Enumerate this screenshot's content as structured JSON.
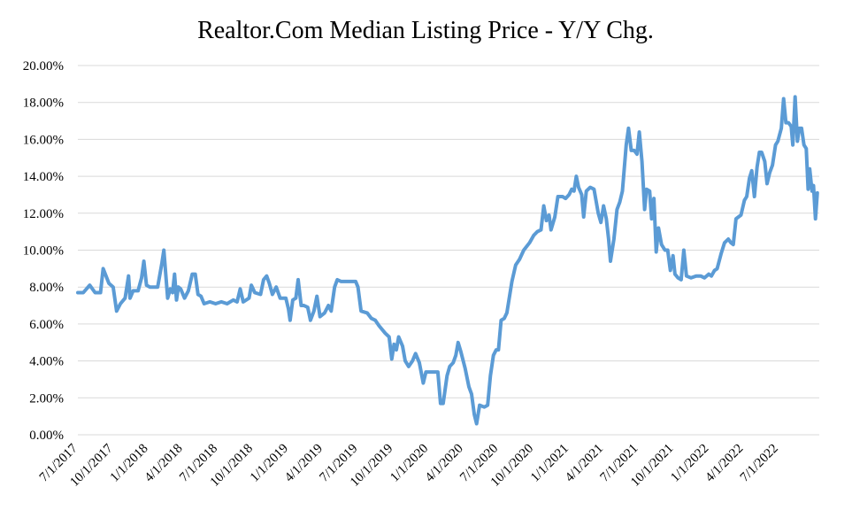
{
  "chart_data": {
    "type": "line",
    "title": "Realtor.Com Median Listing Price - Y/Y Chg.",
    "xlabel": "",
    "ylabel": "",
    "ylim": [
      0,
      0.2
    ],
    "y_ticks": [
      "0.00%",
      "2.00%",
      "4.00%",
      "6.00%",
      "8.00%",
      "10.00%",
      "12.00%",
      "14.00%",
      "16.00%",
      "18.00%",
      "20.00%"
    ],
    "x_tick_labels": [
      "7/1/2017",
      "10/1/2017",
      "1/1/2018",
      "4/1/2018",
      "7/1/2018",
      "10/1/2018",
      "1/1/2019",
      "4/1/2019",
      "7/1/2019",
      "10/1/2019",
      "1/1/2020",
      "4/1/2020",
      "7/1/2020",
      "10/1/2020",
      "1/1/2021",
      "4/1/2021",
      "7/1/2021",
      "10/1/2021",
      "1/1/2022",
      "4/1/2022",
      "7/1/2022"
    ],
    "x_range": [
      "2017-07-01",
      "2022-10-15"
    ],
    "grid": true,
    "series_color": "#5b9bd5",
    "series": [
      {
        "points": [
          [
            "2017-07-01",
            0.077
          ],
          [
            "2017-07-15",
            0.077
          ],
          [
            "2017-08-01",
            0.081
          ],
          [
            "2017-08-15",
            0.077
          ],
          [
            "2017-08-29",
            0.077
          ],
          [
            "2017-09-05",
            0.09
          ],
          [
            "2017-09-20",
            0.082
          ],
          [
            "2017-10-01",
            0.08
          ],
          [
            "2017-10-10",
            0.067
          ],
          [
            "2017-10-20",
            0.071
          ],
          [
            "2017-11-01",
            0.074
          ],
          [
            "2017-11-10",
            0.086
          ],
          [
            "2017-11-14",
            0.074
          ],
          [
            "2017-11-22",
            0.078
          ],
          [
            "2017-12-05",
            0.078
          ],
          [
            "2017-12-14",
            0.085
          ],
          [
            "2017-12-20",
            0.094
          ],
          [
            "2017-12-27",
            0.081
          ],
          [
            "2018-01-05",
            0.08
          ],
          [
            "2018-01-25",
            0.08
          ],
          [
            "2018-02-05",
            0.093
          ],
          [
            "2018-02-10",
            0.1
          ],
          [
            "2018-02-20",
            0.074
          ],
          [
            "2018-02-27",
            0.079
          ],
          [
            "2018-03-05",
            0.077
          ],
          [
            "2018-03-10",
            0.087
          ],
          [
            "2018-03-15",
            0.073
          ],
          [
            "2018-03-20",
            0.08
          ],
          [
            "2018-03-26",
            0.079
          ],
          [
            "2018-04-05",
            0.074
          ],
          [
            "2018-04-15",
            0.078
          ],
          [
            "2018-04-25",
            0.087
          ],
          [
            "2018-05-03",
            0.087
          ],
          [
            "2018-05-10",
            0.076
          ],
          [
            "2018-05-18",
            0.075
          ],
          [
            "2018-05-26",
            0.071
          ],
          [
            "2018-06-10",
            0.072
          ],
          [
            "2018-06-25",
            0.071
          ],
          [
            "2018-07-10",
            0.072
          ],
          [
            "2018-07-25",
            0.071
          ],
          [
            "2018-08-10",
            0.073
          ],
          [
            "2018-08-20",
            0.072
          ],
          [
            "2018-08-28",
            0.079
          ],
          [
            "2018-09-05",
            0.072
          ],
          [
            "2018-09-20",
            0.074
          ],
          [
            "2018-09-26",
            0.081
          ],
          [
            "2018-10-05",
            0.077
          ],
          [
            "2018-10-20",
            0.076
          ],
          [
            "2018-10-28",
            0.084
          ],
          [
            "2018-11-05",
            0.086
          ],
          [
            "2018-11-12",
            0.082
          ],
          [
            "2018-11-20",
            0.076
          ],
          [
            "2018-11-30",
            0.08
          ],
          [
            "2018-12-10",
            0.074
          ],
          [
            "2018-12-25",
            0.074
          ],
          [
            "2019-01-01",
            0.068
          ],
          [
            "2019-01-05",
            0.062
          ],
          [
            "2019-01-12",
            0.073
          ],
          [
            "2019-01-20",
            0.074
          ],
          [
            "2019-01-26",
            0.084
          ],
          [
            "2019-02-03",
            0.07
          ],
          [
            "2019-02-10",
            0.07
          ],
          [
            "2019-02-20",
            0.069
          ],
          [
            "2019-02-27",
            0.062
          ],
          [
            "2019-03-08",
            0.067
          ],
          [
            "2019-03-16",
            0.075
          ],
          [
            "2019-03-24",
            0.064
          ],
          [
            "2019-04-05",
            0.066
          ],
          [
            "2019-04-15",
            0.07
          ],
          [
            "2019-04-22",
            0.067
          ],
          [
            "2019-05-01",
            0.08
          ],
          [
            "2019-05-08",
            0.084
          ],
          [
            "2019-05-18",
            0.083
          ],
          [
            "2019-06-10",
            0.083
          ],
          [
            "2019-06-25",
            0.083
          ],
          [
            "2019-07-01",
            0.08
          ],
          [
            "2019-07-09",
            0.067
          ],
          [
            "2019-07-25",
            0.066
          ],
          [
            "2019-08-05",
            0.063
          ],
          [
            "2019-08-15",
            0.062
          ],
          [
            "2019-08-25",
            0.059
          ],
          [
            "2019-09-10",
            0.055
          ],
          [
            "2019-09-20",
            0.053
          ],
          [
            "2019-09-27",
            0.041
          ],
          [
            "2019-10-03",
            0.049
          ],
          [
            "2019-10-09",
            0.046
          ],
          [
            "2019-10-15",
            0.053
          ],
          [
            "2019-10-25",
            0.048
          ],
          [
            "2019-11-01",
            0.04
          ],
          [
            "2019-11-10",
            0.037
          ],
          [
            "2019-11-20",
            0.04
          ],
          [
            "2019-11-28",
            0.044
          ],
          [
            "2019-12-08",
            0.039
          ],
          [
            "2019-12-18",
            0.028
          ],
          [
            "2019-12-25",
            0.034
          ],
          [
            "2020-01-15",
            0.034
          ],
          [
            "2020-01-25",
            0.034
          ],
          [
            "2020-02-01",
            0.017
          ],
          [
            "2020-02-08",
            0.017
          ],
          [
            "2020-02-18",
            0.032
          ],
          [
            "2020-02-25",
            0.037
          ],
          [
            "2020-03-05",
            0.039
          ],
          [
            "2020-03-12",
            0.043
          ],
          [
            "2020-03-18",
            0.05
          ],
          [
            "2020-03-25",
            0.045
          ],
          [
            "2020-04-05",
            0.036
          ],
          [
            "2020-04-15",
            0.026
          ],
          [
            "2020-04-22",
            0.022
          ],
          [
            "2020-04-29",
            0.011
          ],
          [
            "2020-05-05",
            0.006
          ],
          [
            "2020-05-13",
            0.016
          ],
          [
            "2020-05-25",
            0.015
          ],
          [
            "2020-06-03",
            0.016
          ],
          [
            "2020-06-10",
            0.032
          ],
          [
            "2020-06-18",
            0.043
          ],
          [
            "2020-06-25",
            0.046
          ],
          [
            "2020-07-01",
            0.046
          ],
          [
            "2020-07-08",
            0.062
          ],
          [
            "2020-07-16",
            0.063
          ],
          [
            "2020-07-23",
            0.066
          ],
          [
            "2020-08-05",
            0.083
          ],
          [
            "2020-08-15",
            0.092
          ],
          [
            "2020-08-25",
            0.095
          ],
          [
            "2020-09-05",
            0.1
          ],
          [
            "2020-09-20",
            0.104
          ],
          [
            "2020-10-01",
            0.108
          ],
          [
            "2020-10-10",
            0.11
          ],
          [
            "2020-10-20",
            0.111
          ],
          [
            "2020-10-27",
            0.124
          ],
          [
            "2020-11-03",
            0.116
          ],
          [
            "2020-11-10",
            0.119
          ],
          [
            "2020-11-15",
            0.111
          ],
          [
            "2020-11-25",
            0.118
          ],
          [
            "2020-12-03",
            0.129
          ],
          [
            "2020-12-15",
            0.129
          ],
          [
            "2020-12-23",
            0.128
          ],
          [
            "2021-01-01",
            0.13
          ],
          [
            "2021-01-08",
            0.133
          ],
          [
            "2021-01-14",
            0.132
          ],
          [
            "2021-01-20",
            0.14
          ],
          [
            "2021-01-26",
            0.134
          ],
          [
            "2021-02-03",
            0.13
          ],
          [
            "2021-02-08",
            0.118
          ],
          [
            "2021-02-15",
            0.132
          ],
          [
            "2021-02-25",
            0.134
          ],
          [
            "2021-03-07",
            0.133
          ],
          [
            "2021-03-18",
            0.12
          ],
          [
            "2021-03-25",
            0.115
          ],
          [
            "2021-04-01",
            0.124
          ],
          [
            "2021-04-08",
            0.117
          ],
          [
            "2021-04-14",
            0.106
          ],
          [
            "2021-04-19",
            0.094
          ],
          [
            "2021-04-28",
            0.106
          ],
          [
            "2021-05-06",
            0.122
          ],
          [
            "2021-05-13",
            0.126
          ],
          [
            "2021-05-20",
            0.132
          ],
          [
            "2021-05-30",
            0.157
          ],
          [
            "2021-06-05",
            0.166
          ],
          [
            "2021-06-12",
            0.154
          ],
          [
            "2021-06-20",
            0.154
          ],
          [
            "2021-06-27",
            0.152
          ],
          [
            "2021-07-03",
            0.164
          ],
          [
            "2021-07-10",
            0.148
          ],
          [
            "2021-07-17",
            0.122
          ],
          [
            "2021-07-22",
            0.133
          ],
          [
            "2021-07-30",
            0.132
          ],
          [
            "2021-08-04",
            0.117
          ],
          [
            "2021-08-10",
            0.128
          ],
          [
            "2021-08-16",
            0.099
          ],
          [
            "2021-08-22",
            0.112
          ],
          [
            "2021-08-30",
            0.103
          ],
          [
            "2021-09-08",
            0.1
          ],
          [
            "2021-09-15",
            0.1
          ],
          [
            "2021-09-22",
            0.089
          ],
          [
            "2021-09-29",
            0.097
          ],
          [
            "2021-10-04",
            0.087
          ],
          [
            "2021-10-12",
            0.085
          ],
          [
            "2021-10-20",
            0.084
          ],
          [
            "2021-10-27",
            0.1
          ],
          [
            "2021-11-03",
            0.086
          ],
          [
            "2021-11-15",
            0.085
          ],
          [
            "2021-11-28",
            0.086
          ],
          [
            "2021-12-10",
            0.086
          ],
          [
            "2021-12-20",
            0.085
          ],
          [
            "2021-12-31",
            0.087
          ],
          [
            "2022-01-07",
            0.086
          ],
          [
            "2022-01-15",
            0.089
          ],
          [
            "2022-01-22",
            0.09
          ],
          [
            "2022-02-01",
            0.098
          ],
          [
            "2022-02-10",
            0.104
          ],
          [
            "2022-02-20",
            0.106
          ],
          [
            "2022-02-27",
            0.104
          ],
          [
            "2022-03-05",
            0.103
          ],
          [
            "2022-03-12",
            0.117
          ],
          [
            "2022-03-25",
            0.119
          ],
          [
            "2022-04-03",
            0.127
          ],
          [
            "2022-04-09",
            0.129
          ],
          [
            "2022-04-16",
            0.139
          ],
          [
            "2022-04-22",
            0.143
          ],
          [
            "2022-04-29",
            0.129
          ],
          [
            "2022-05-06",
            0.145
          ],
          [
            "2022-05-12",
            0.153
          ],
          [
            "2022-05-18",
            0.153
          ],
          [
            "2022-05-26",
            0.148
          ],
          [
            "2022-06-01",
            0.136
          ],
          [
            "2022-06-08",
            0.142
          ],
          [
            "2022-06-15",
            0.146
          ],
          [
            "2022-06-23",
            0.157
          ],
          [
            "2022-06-29",
            0.159
          ],
          [
            "2022-07-08",
            0.166
          ],
          [
            "2022-07-14",
            0.182
          ],
          [
            "2022-07-20",
            0.169
          ],
          [
            "2022-07-27",
            0.169
          ],
          [
            "2022-08-03",
            0.167
          ],
          [
            "2022-08-07",
            0.157
          ],
          [
            "2022-08-13",
            0.183
          ],
          [
            "2022-08-19",
            0.159
          ],
          [
            "2022-08-24",
            0.166
          ],
          [
            "2022-08-30",
            0.166
          ],
          [
            "2022-09-05",
            0.157
          ],
          [
            "2022-09-11",
            0.155
          ],
          [
            "2022-09-16",
            0.133
          ],
          [
            "2022-09-20",
            0.144
          ],
          [
            "2022-09-26",
            0.132
          ],
          [
            "2022-09-30",
            0.135
          ],
          [
            "2022-10-05",
            0.117
          ],
          [
            "2022-10-10",
            0.131
          ]
        ]
      }
    ]
  }
}
